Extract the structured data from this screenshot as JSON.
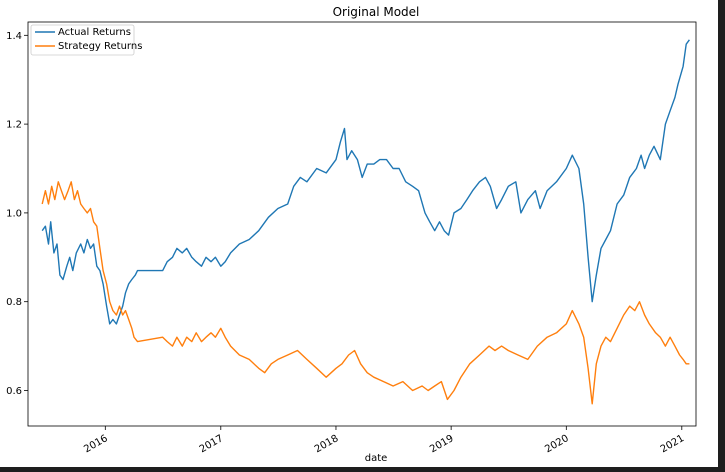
{
  "chart_data": {
    "type": "line",
    "title": "Original Model",
    "xlabel": "date",
    "ylabel": "",
    "xlim": [
      "2015-05-01",
      "2021-02-15"
    ],
    "ylim": [
      0.52,
      1.43
    ],
    "x_ticks": [
      "2016",
      "2017",
      "2018",
      "2019",
      "2020",
      "2021"
    ],
    "y_ticks": [
      "0.6",
      "0.8",
      "1.0",
      "1.2",
      "1.4"
    ],
    "grid": false,
    "legend_position": "top-left",
    "series": [
      {
        "name": "Actual Returns",
        "color": "#1f77b4",
        "points": [
          [
            "2015-06-15",
            0.96
          ],
          [
            "2015-06-25",
            0.97
          ],
          [
            "2015-07-05",
            0.93
          ],
          [
            "2015-07-12",
            0.98
          ],
          [
            "2015-07-22",
            0.91
          ],
          [
            "2015-08-01",
            0.93
          ],
          [
            "2015-08-10",
            0.86
          ],
          [
            "2015-08-20",
            0.85
          ],
          [
            "2015-09-01",
            0.88
          ],
          [
            "2015-09-10",
            0.9
          ],
          [
            "2015-09-20",
            0.87
          ],
          [
            "2015-10-01",
            0.91
          ],
          [
            "2015-10-15",
            0.93
          ],
          [
            "2015-10-25",
            0.91
          ],
          [
            "2015-11-05",
            0.94
          ],
          [
            "2015-11-15",
            0.92
          ],
          [
            "2015-11-25",
            0.93
          ],
          [
            "2015-12-05",
            0.88
          ],
          [
            "2015-12-15",
            0.87
          ],
          [
            "2015-12-25",
            0.84
          ],
          [
            "2016-01-05",
            0.79
          ],
          [
            "2016-01-15",
            0.75
          ],
          [
            "2016-01-25",
            0.76
          ],
          [
            "2016-02-05",
            0.75
          ],
          [
            "2016-02-15",
            0.77
          ],
          [
            "2016-02-25",
            0.79
          ],
          [
            "2016-03-05",
            0.82
          ],
          [
            "2016-03-15",
            0.84
          ],
          [
            "2016-03-25",
            0.85
          ],
          [
            "2016-04-05",
            0.86
          ],
          [
            "2016-04-12",
            0.87
          ],
          [
            "2016-07-01",
            0.87
          ],
          [
            "2016-07-15",
            0.89
          ],
          [
            "2016-08-01",
            0.9
          ],
          [
            "2016-08-15",
            0.92
          ],
          [
            "2016-09-01",
            0.91
          ],
          [
            "2016-09-15",
            0.92
          ],
          [
            "2016-10-01",
            0.9
          ],
          [
            "2016-10-15",
            0.89
          ],
          [
            "2016-11-01",
            0.88
          ],
          [
            "2016-11-15",
            0.9
          ],
          [
            "2016-12-01",
            0.89
          ],
          [
            "2016-12-15",
            0.9
          ],
          [
            "2017-01-01",
            0.88
          ],
          [
            "2017-01-15",
            0.89
          ],
          [
            "2017-02-01",
            0.91
          ],
          [
            "2017-03-01",
            0.93
          ],
          [
            "2017-04-01",
            0.94
          ],
          [
            "2017-05-01",
            0.96
          ],
          [
            "2017-06-01",
            0.99
          ],
          [
            "2017-07-01",
            1.01
          ],
          [
            "2017-08-01",
            1.02
          ],
          [
            "2017-08-20",
            1.06
          ],
          [
            "2017-09-10",
            1.08
          ],
          [
            "2017-10-01",
            1.07
          ],
          [
            "2017-11-01",
            1.1
          ],
          [
            "2017-12-01",
            1.09
          ],
          [
            "2018-01-01",
            1.12
          ],
          [
            "2018-01-15",
            1.16
          ],
          [
            "2018-01-28",
            1.19
          ],
          [
            "2018-02-05",
            1.12
          ],
          [
            "2018-02-20",
            1.14
          ],
          [
            "2018-03-10",
            1.12
          ],
          [
            "2018-03-25",
            1.08
          ],
          [
            "2018-04-10",
            1.11
          ],
          [
            "2018-05-01",
            1.11
          ],
          [
            "2018-05-20",
            1.12
          ],
          [
            "2018-06-10",
            1.12
          ],
          [
            "2018-07-01",
            1.1
          ],
          [
            "2018-07-20",
            1.1
          ],
          [
            "2018-08-10",
            1.07
          ],
          [
            "2018-09-01",
            1.06
          ],
          [
            "2018-09-20",
            1.05
          ],
          [
            "2018-10-10",
            1.0
          ],
          [
            "2018-10-25",
            0.98
          ],
          [
            "2018-11-10",
            0.96
          ],
          [
            "2018-11-25",
            0.98
          ],
          [
            "2018-12-10",
            0.96
          ],
          [
            "2018-12-24",
            0.95
          ],
          [
            "2019-01-10",
            1.0
          ],
          [
            "2019-02-01",
            1.01
          ],
          [
            "2019-02-20",
            1.03
          ],
          [
            "2019-03-10",
            1.05
          ],
          [
            "2019-04-01",
            1.07
          ],
          [
            "2019-04-20",
            1.08
          ],
          [
            "2019-05-05",
            1.06
          ],
          [
            "2019-05-25",
            1.01
          ],
          [
            "2019-06-10",
            1.03
          ],
          [
            "2019-07-01",
            1.06
          ],
          [
            "2019-07-25",
            1.07
          ],
          [
            "2019-08-10",
            1.0
          ],
          [
            "2019-09-01",
            1.03
          ],
          [
            "2019-09-25",
            1.05
          ],
          [
            "2019-10-10",
            1.01
          ],
          [
            "2019-11-01",
            1.05
          ],
          [
            "2019-12-01",
            1.07
          ],
          [
            "2020-01-01",
            1.1
          ],
          [
            "2020-01-20",
            1.13
          ],
          [
            "2020-02-10",
            1.1
          ],
          [
            "2020-02-25",
            1.02
          ],
          [
            "2020-03-10",
            0.9
          ],
          [
            "2020-03-23",
            0.8
          ],
          [
            "2020-04-05",
            0.86
          ],
          [
            "2020-04-20",
            0.92
          ],
          [
            "2020-05-05",
            0.94
          ],
          [
            "2020-05-20",
            0.96
          ],
          [
            "2020-06-10",
            1.02
          ],
          [
            "2020-07-01",
            1.04
          ],
          [
            "2020-07-20",
            1.08
          ],
          [
            "2020-08-10",
            1.1
          ],
          [
            "2020-08-25",
            1.13
          ],
          [
            "2020-09-05",
            1.1
          ],
          [
            "2020-09-20",
            1.13
          ],
          [
            "2020-10-05",
            1.15
          ],
          [
            "2020-10-25",
            1.12
          ],
          [
            "2020-11-10",
            1.2
          ],
          [
            "2020-11-25",
            1.23
          ],
          [
            "2020-12-10",
            1.26
          ],
          [
            "2020-12-20",
            1.29
          ],
          [
            "2021-01-05",
            1.33
          ],
          [
            "2021-01-15",
            1.38
          ],
          [
            "2021-01-25",
            1.39
          ]
        ]
      },
      {
        "name": "Strategy Returns",
        "color": "#ff7f0e",
        "points": [
          [
            "2015-06-15",
            1.02
          ],
          [
            "2015-06-25",
            1.05
          ],
          [
            "2015-07-05",
            1.02
          ],
          [
            "2015-07-15",
            1.06
          ],
          [
            "2015-07-25",
            1.03
          ],
          [
            "2015-08-05",
            1.07
          ],
          [
            "2015-08-15",
            1.05
          ],
          [
            "2015-08-25",
            1.03
          ],
          [
            "2015-09-05",
            1.05
          ],
          [
            "2015-09-15",
            1.07
          ],
          [
            "2015-09-25",
            1.03
          ],
          [
            "2015-10-05",
            1.05
          ],
          [
            "2015-10-15",
            1.02
          ],
          [
            "2015-10-25",
            1.01
          ],
          [
            "2015-11-05",
            1.0
          ],
          [
            "2015-11-15",
            1.01
          ],
          [
            "2015-11-25",
            0.98
          ],
          [
            "2015-12-05",
            0.97
          ],
          [
            "2015-12-15",
            0.92
          ],
          [
            "2015-12-25",
            0.87
          ],
          [
            "2016-01-05",
            0.84
          ],
          [
            "2016-01-15",
            0.8
          ],
          [
            "2016-01-25",
            0.78
          ],
          [
            "2016-02-05",
            0.77
          ],
          [
            "2016-02-15",
            0.79
          ],
          [
            "2016-02-25",
            0.77
          ],
          [
            "2016-03-05",
            0.78
          ],
          [
            "2016-03-15",
            0.76
          ],
          [
            "2016-03-25",
            0.74
          ],
          [
            "2016-04-01",
            0.72
          ],
          [
            "2016-04-12",
            0.71
          ],
          [
            "2016-07-01",
            0.72
          ],
          [
            "2016-07-15",
            0.71
          ],
          [
            "2016-08-01",
            0.7
          ],
          [
            "2016-08-15",
            0.72
          ],
          [
            "2016-09-01",
            0.7
          ],
          [
            "2016-09-15",
            0.72
          ],
          [
            "2016-10-01",
            0.71
          ],
          [
            "2016-10-15",
            0.73
          ],
          [
            "2016-11-01",
            0.71
          ],
          [
            "2016-11-15",
            0.72
          ],
          [
            "2016-12-01",
            0.73
          ],
          [
            "2016-12-15",
            0.72
          ],
          [
            "2017-01-01",
            0.74
          ],
          [
            "2017-01-15",
            0.72
          ],
          [
            "2017-02-01",
            0.7
          ],
          [
            "2017-03-01",
            0.68
          ],
          [
            "2017-04-01",
            0.67
          ],
          [
            "2017-05-01",
            0.65
          ],
          [
            "2017-05-20",
            0.64
          ],
          [
            "2017-06-10",
            0.66
          ],
          [
            "2017-07-01",
            0.67
          ],
          [
            "2017-08-01",
            0.68
          ],
          [
            "2017-09-01",
            0.69
          ],
          [
            "2017-10-01",
            0.67
          ],
          [
            "2017-11-01",
            0.65
          ],
          [
            "2017-12-01",
            0.63
          ],
          [
            "2018-01-01",
            0.65
          ],
          [
            "2018-01-20",
            0.66
          ],
          [
            "2018-02-10",
            0.68
          ],
          [
            "2018-03-01",
            0.69
          ],
          [
            "2018-03-20",
            0.66
          ],
          [
            "2018-04-10",
            0.64
          ],
          [
            "2018-05-01",
            0.63
          ],
          [
            "2018-06-01",
            0.62
          ],
          [
            "2018-07-01",
            0.61
          ],
          [
            "2018-08-01",
            0.62
          ],
          [
            "2018-09-01",
            0.6
          ],
          [
            "2018-10-01",
            0.61
          ],
          [
            "2018-10-20",
            0.6
          ],
          [
            "2018-11-10",
            0.61
          ],
          [
            "2018-12-01",
            0.62
          ],
          [
            "2018-12-20",
            0.58
          ],
          [
            "2019-01-10",
            0.6
          ],
          [
            "2019-02-01",
            0.63
          ],
          [
            "2019-03-01",
            0.66
          ],
          [
            "2019-04-01",
            0.68
          ],
          [
            "2019-05-01",
            0.7
          ],
          [
            "2019-05-20",
            0.69
          ],
          [
            "2019-06-10",
            0.7
          ],
          [
            "2019-07-01",
            0.69
          ],
          [
            "2019-08-01",
            0.68
          ],
          [
            "2019-09-01",
            0.67
          ],
          [
            "2019-10-01",
            0.7
          ],
          [
            "2019-11-01",
            0.72
          ],
          [
            "2019-12-01",
            0.73
          ],
          [
            "2020-01-01",
            0.75
          ],
          [
            "2020-01-20",
            0.78
          ],
          [
            "2020-02-10",
            0.75
          ],
          [
            "2020-02-25",
            0.72
          ],
          [
            "2020-03-10",
            0.65
          ],
          [
            "2020-03-23",
            0.57
          ],
          [
            "2020-04-05",
            0.66
          ],
          [
            "2020-04-20",
            0.7
          ],
          [
            "2020-05-05",
            0.72
          ],
          [
            "2020-05-20",
            0.71
          ],
          [
            "2020-06-10",
            0.74
          ],
          [
            "2020-07-01",
            0.77
          ],
          [
            "2020-07-20",
            0.79
          ],
          [
            "2020-08-05",
            0.78
          ],
          [
            "2020-08-20",
            0.8
          ],
          [
            "2020-09-05",
            0.77
          ],
          [
            "2020-09-20",
            0.75
          ],
          [
            "2020-10-10",
            0.73
          ],
          [
            "2020-10-25",
            0.72
          ],
          [
            "2020-11-10",
            0.7
          ],
          [
            "2020-11-25",
            0.72
          ],
          [
            "2020-12-10",
            0.7
          ],
          [
            "2020-12-25",
            0.68
          ],
          [
            "2021-01-05",
            0.67
          ],
          [
            "2021-01-15",
            0.66
          ],
          [
            "2021-01-25",
            0.66
          ]
        ]
      }
    ]
  }
}
